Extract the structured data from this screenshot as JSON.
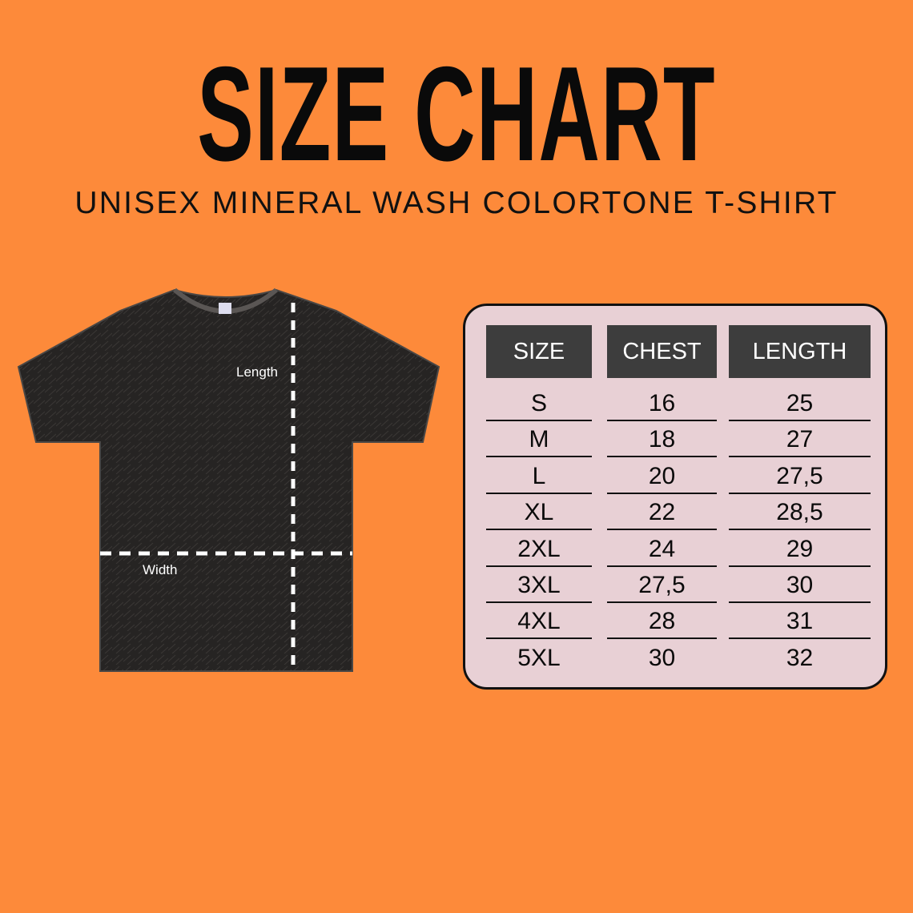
{
  "title": "SIZE CHART",
  "subtitle": "UNISEX MINERAL WASH COLORTONE T-SHIRT",
  "diagram": {
    "length_label": "Length",
    "width_label": "Width"
  },
  "colors": {
    "background": "#fd8a3a",
    "panel": "#e8d0d5",
    "header": "#3d3d3d",
    "shirt": "#262423"
  },
  "table": {
    "headers": [
      "SIZE",
      "CHEST",
      "LENGTH"
    ],
    "rows": [
      [
        "S",
        "16",
        "25"
      ],
      [
        "M",
        "18",
        "27"
      ],
      [
        "L",
        "20",
        "27,5"
      ],
      [
        "XL",
        "22",
        "28,5"
      ],
      [
        "2XL",
        "24",
        "29"
      ],
      [
        "3XL",
        "27,5",
        "30"
      ],
      [
        "4XL",
        "28",
        "31"
      ],
      [
        "5XL",
        "30",
        "32"
      ]
    ]
  }
}
